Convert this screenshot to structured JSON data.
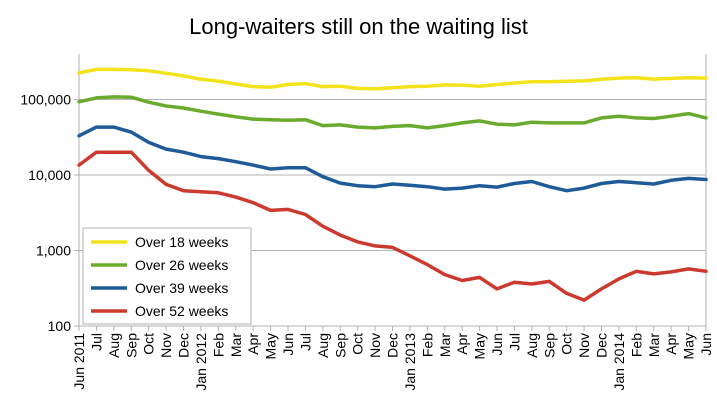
{
  "chart_data": {
    "type": "line",
    "title": "Long-waiters still on the waiting list",
    "y_scale": "log",
    "ylim": [
      100,
      400000
    ],
    "y_ticks": [
      100,
      1000,
      10000,
      100000
    ],
    "y_tick_labels": [
      "100",
      "1,000",
      "10,000",
      "100,000"
    ],
    "grid": "horizontal",
    "legend_position": "bottom-left",
    "x_tick_labels": [
      "Jun 2011",
      "Jul",
      "Aug",
      "Sep",
      "Oct",
      "Nov",
      "Dec",
      "Jan 2012",
      "Feb",
      "Mar",
      "Apr",
      "May",
      "Jun",
      "Jul",
      "Aug",
      "Sep",
      "Oct",
      "Nov",
      "Dec",
      "Jan 2013",
      "Feb",
      "Mar",
      "Apr",
      "May",
      "Jun",
      "Jul",
      "Aug",
      "Sep",
      "Oct",
      "Nov",
      "Dec",
      "Jan 2014",
      "Feb",
      "Mar",
      "Apr",
      "May",
      "Jun"
    ],
    "series": [
      {
        "name": "Over 18 weeks",
        "color": "#f2e31b",
        "values": [
          225000,
          250000,
          250000,
          248000,
          240000,
          222000,
          205000,
          185000,
          175000,
          160000,
          148000,
          145000,
          158000,
          162000,
          148000,
          150000,
          140000,
          138000,
          143000,
          148000,
          150000,
          156000,
          155000,
          150000,
          158000,
          165000,
          172000,
          172000,
          174000,
          176000,
          185000,
          192000,
          194000,
          186000,
          190000,
          194000,
          192000
        ]
      },
      {
        "name": "Over 26 weeks",
        "color": "#6aab2e",
        "values": [
          93000,
          105000,
          108000,
          107000,
          92000,
          82000,
          77000,
          70000,
          64000,
          59000,
          55000,
          54000,
          53000,
          54000,
          45000,
          46000,
          43000,
          42000,
          44000,
          45000,
          42000,
          45000,
          49000,
          52000,
          47000,
          46000,
          50000,
          49000,
          49000,
          49000,
          57000,
          60000,
          57000,
          56000,
          60000,
          65000,
          57000
        ]
      },
      {
        "name": "Over 39 weeks",
        "color": "#1f5b99",
        "values": [
          33000,
          43000,
          43000,
          37000,
          27000,
          22000,
          20000,
          17500,
          16500,
          15000,
          13500,
          12000,
          12500,
          12500,
          9500,
          7800,
          7200,
          7000,
          7600,
          7300,
          7000,
          6500,
          6700,
          7200,
          6900,
          7700,
          8200,
          7000,
          6200,
          6700,
          7700,
          8200,
          7900,
          7600,
          8500,
          9000,
          8700
        ]
      },
      {
        "name": "Over 52 weeks",
        "color": "#cc3a2f",
        "values": [
          13500,
          20000,
          20000,
          20000,
          11500,
          7500,
          6200,
          6000,
          5800,
          5100,
          4300,
          3400,
          3500,
          3000,
          2100,
          1600,
          1300,
          1150,
          1100,
          850,
          650,
          480,
          400,
          440,
          310,
          380,
          360,
          390,
          270,
          220,
          310,
          420,
          530,
          490,
          520,
          570,
          530
        ]
      }
    ]
  }
}
